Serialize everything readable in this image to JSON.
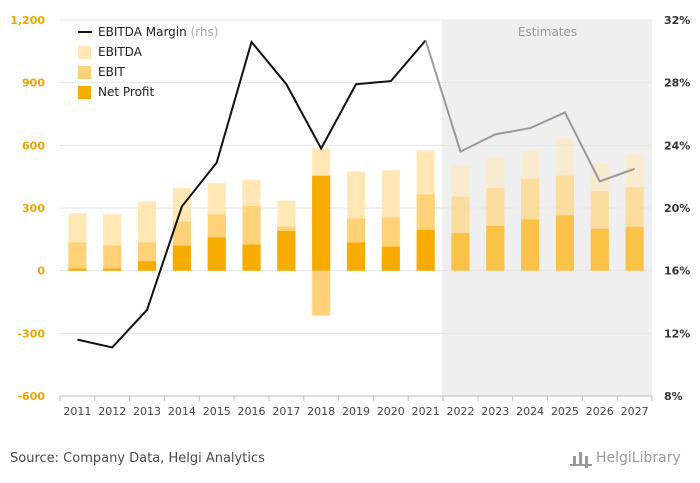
{
  "chart_data": {
    "type": "bar",
    "title": "",
    "categories": [
      "2011",
      "2012",
      "2013",
      "2014",
      "2015",
      "2016",
      "2017",
      "2018",
      "2019",
      "2020",
      "2021",
      "2022",
      "2023",
      "2024",
      "2025",
      "2026",
      "2027"
    ],
    "estimates_label": "Estimates",
    "estimates_from": "2022",
    "series": [
      {
        "name": "EBITDA",
        "type": "bar",
        "color": "#FFE8B5",
        "values": [
          275,
          270,
          330,
          395,
          420,
          435,
          335,
          585,
          475,
          480,
          575,
          500,
          540,
          575,
          635,
          510,
          560
        ]
      },
      {
        "name": "EBIT",
        "type": "bar",
        "color": "#FFD27A",
        "values": [
          135,
          120,
          135,
          235,
          270,
          310,
          210,
          -215,
          250,
          255,
          365,
          355,
          395,
          440,
          455,
          380,
          400
        ]
      },
      {
        "name": "Net Profit",
        "type": "bar",
        "color": "#F9AC00",
        "values": [
          10,
          10,
          45,
          120,
          160,
          125,
          190,
          455,
          135,
          115,
          195,
          180,
          215,
          245,
          265,
          200,
          210
        ]
      },
      {
        "name": "EBITDA Margin",
        "name_suffix": "(rhs)",
        "type": "line",
        "axis": "right",
        "color": "#111111",
        "estimate_color": "#999999",
        "values": [
          11.6,
          11.1,
          13.5,
          20.1,
          22.9,
          30.6,
          27.9,
          23.8,
          27.9,
          28.1,
          30.7,
          23.6,
          24.7,
          25.1,
          26.1,
          21.7,
          22.5
        ]
      }
    ],
    "y_left": {
      "ylim": [
        -600,
        1200
      ],
      "ticks": [
        "-600",
        "-300",
        "0",
        "300",
        "600",
        "900",
        "1,200"
      ],
      "tick_values": [
        -600,
        -300,
        0,
        300,
        600,
        900,
        1200
      ]
    },
    "y_right": {
      "ylim": [
        8,
        32
      ],
      "ticks": [
        "8%",
        "12%",
        "16%",
        "20%",
        "24%",
        "28%",
        "32%"
      ],
      "tick_values": [
        8,
        12,
        16,
        20,
        24,
        28,
        32
      ]
    },
    "grid": true,
    "legend_position": "top-left"
  },
  "footer": {
    "source": "Source: Company Data, Helgi Analytics",
    "logo_text": "HelgiLibrary"
  },
  "colors": {
    "left_axis_text": "#F0A500",
    "right_axis_text": "#333333",
    "estimate_shade": "#EFEFEF",
    "grid": "#E6E6E6"
  }
}
